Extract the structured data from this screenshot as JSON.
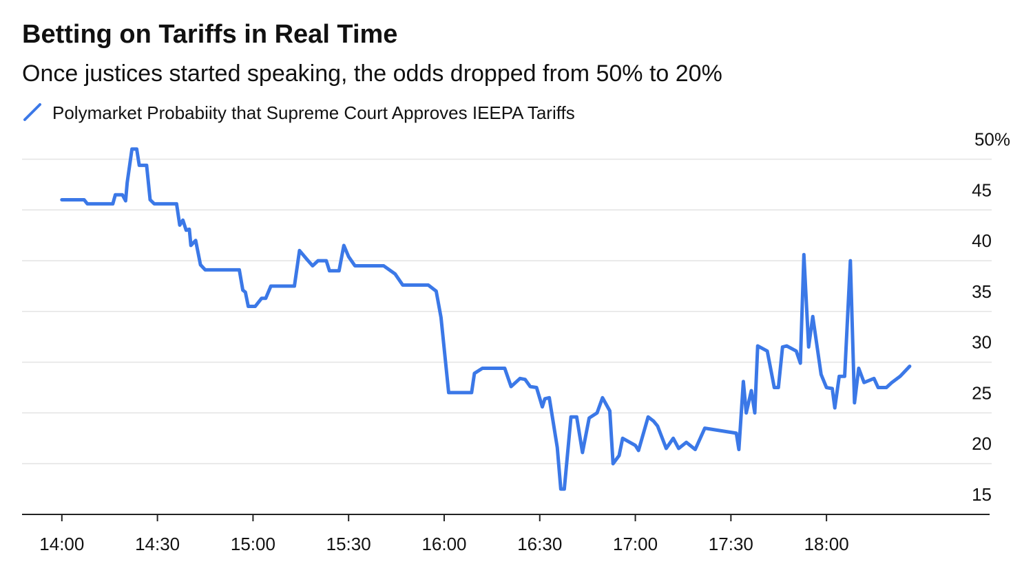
{
  "chart_data": {
    "type": "line",
    "title": "Betting on Tariffs in Real Time",
    "subtitle": "Once justices started speaking, the odds dropped from 50% to 20%",
    "x": [
      840,
      847,
      848,
      856,
      856.8,
      859,
      860,
      860.5,
      862,
      863.5,
      864.3,
      866.6,
      867.7,
      869,
      876,
      877,
      878,
      879,
      880,
      880.5,
      882,
      883.5,
      885,
      895.7,
      896.8,
      897.6,
      898.5,
      900.7,
      902.7,
      904,
      905.6,
      913,
      914.6,
      917,
      918.7,
      920.4,
      923,
      924,
      927,
      928.5,
      930,
      932,
      941,
      944.6,
      947,
      955,
      957.5,
      959,
      961.4,
      968.6,
      969.5,
      972,
      979,
      981,
      983.8,
      985.4,
      987,
      989,
      990.8,
      991.6,
      993,
      995.5,
      996.6,
      997.7,
      999.8,
      1001.6,
      1003.4,
      1005.5,
      1008,
      1009.7,
      1012,
      1013,
      1014.9,
      1016,
      1020,
      1021,
      1024,
      1025.7,
      1027,
      1029.7,
      1031.9,
      1033.6,
      1036,
      1038.8,
      1041.8,
      1051.7,
      1052.5,
      1053.9,
      1054.8,
      1056.4,
      1057.5,
      1058.4,
      1061.4,
      1063.6,
      1064.9,
      1066.2,
      1067.5,
      1070.5,
      1071.8,
      1072.9,
      1074.4,
      1075.7,
      1078.3,
      1080,
      1081.8,
      1082.6,
      1084,
      1085.7,
      1087.5,
      1088.8,
      1090.1,
      1091.8,
      1094.9,
      1096.2,
      1098.8,
      1100.5,
      1103.1,
      1106.1
    ],
    "series": [
      {
        "name": "Polymarket Probabiity that Supreme Court Approves IEEPA Tariffs",
        "color": "#3b78e7",
        "values": [
          46,
          46,
          45.6,
          45.6,
          46.5,
          46.5,
          45.9,
          47.7,
          51,
          51,
          49.4,
          49.4,
          46,
          45.6,
          45.6,
          43.5,
          44,
          43,
          43.1,
          41.5,
          42,
          39.6,
          39.1,
          39.1,
          37.1,
          36.9,
          35.5,
          35.5,
          36.3,
          36.3,
          37.5,
          37.5,
          41,
          40.1,
          39.5,
          40,
          40,
          39,
          39,
          41.5,
          40.4,
          39.5,
          39.5,
          38.7,
          37.6,
          37.6,
          37,
          34.4,
          27,
          27,
          28.9,
          29.4,
          29.4,
          27.6,
          28.4,
          28.3,
          27.6,
          27.5,
          25.6,
          26.4,
          26.5,
          21.6,
          17.5,
          17.5,
          24.6,
          24.6,
          21.1,
          24.5,
          25,
          26.5,
          25.2,
          20,
          20.8,
          22.5,
          21.8,
          21.3,
          24.6,
          24.2,
          23.7,
          21.5,
          22.5,
          21.5,
          22.1,
          21.4,
          23.5,
          23,
          21.4,
          28.1,
          25,
          27.2,
          25,
          31.6,
          31.1,
          27.5,
          27.5,
          31.5,
          31.6,
          31.1,
          29.9,
          40.6,
          31.5,
          34.5,
          28.8,
          27.5,
          27.4,
          25.5,
          28.6,
          28.6,
          40,
          26,
          29.4,
          28,
          28.4,
          27.5,
          27.5,
          28,
          28.6,
          29.6
        ]
      }
    ],
    "xlim": [
      827.5,
      1131.2
    ],
    "xticks": [
      {
        "value": 840,
        "label": "14:00"
      },
      {
        "value": 870,
        "label": "14:30"
      },
      {
        "value": 900,
        "label": "15:00"
      },
      {
        "value": 930,
        "label": "15:30"
      },
      {
        "value": 960,
        "label": "16:00"
      },
      {
        "value": 990,
        "label": "16:30"
      },
      {
        "value": 1020,
        "label": "17:00"
      },
      {
        "value": 1050,
        "label": "17:30"
      },
      {
        "value": 1080,
        "label": "18:00"
      }
    ],
    "ylim": [
      15,
      52
    ],
    "yticks": [
      15,
      20,
      25,
      30,
      35,
      40,
      45,
      {
        "value": 50,
        "label": "50%"
      }
    ],
    "grid": true
  }
}
